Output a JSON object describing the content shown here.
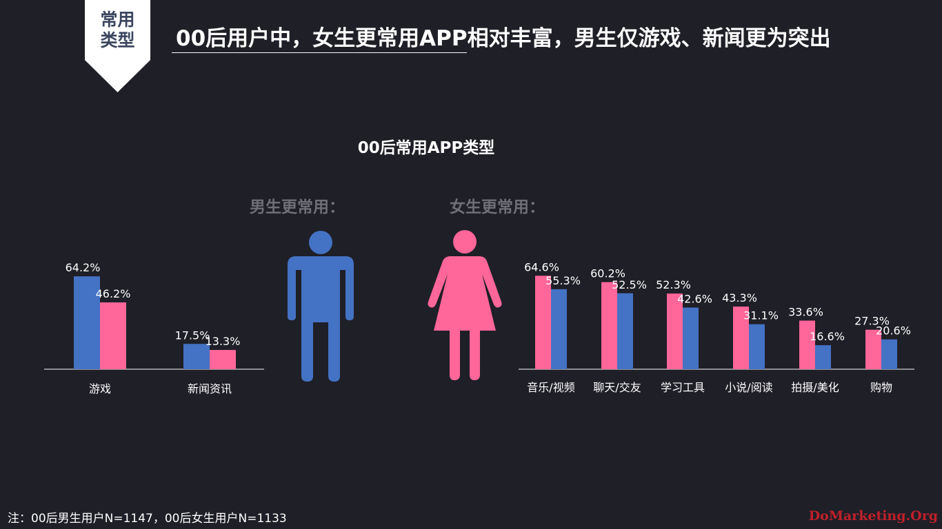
{
  "header": {
    "tag_line1": "常用",
    "tag_line2": "类型",
    "headline": "00后用户中，女生更常用APP相对丰富，男生仅游戏、新闻更为突出"
  },
  "labels": {
    "male_group": "男生更常用：",
    "female_group": "女生更常用："
  },
  "colors": {
    "male": "#4472c4",
    "female": "#ff6699",
    "background": "#1f1f27",
    "axis": "#ffffff",
    "muted_label": "#6f6f78",
    "brand": "#c0202b"
  },
  "chart_data": [
    {
      "type": "bar",
      "title": "00后常用APP类型",
      "categories": [
        "游戏",
        "新闻资讯"
      ],
      "series": [
        {
          "values": [
            64.2,
            17.5
          ],
          "color": "#4472c4"
        },
        {
          "values": [
            46.2,
            13.3
          ],
          "color": "#ff6699"
        }
      ],
      "value_labels": [
        [
          "64.2%",
          "17.5%"
        ],
        [
          "46.2%",
          "13.3%"
        ]
      ],
      "ylim": [
        0,
        100
      ],
      "unit": "%"
    },
    {
      "type": "bar",
      "categories": [
        "音乐/视频",
        "聊天/交友",
        "学习工具",
        "小说/阅读",
        "拍摄/美化",
        "购物"
      ],
      "series": [
        {
          "values": [
            64.6,
            60.2,
            52.3,
            43.3,
            33.6,
            27.3
          ],
          "color": "#ff6699"
        },
        {
          "values": [
            55.3,
            52.5,
            42.6,
            31.1,
            16.6,
            20.6
          ],
          "color": "#4472c4"
        }
      ],
      "value_labels": [
        [
          "64.6%",
          "60.2%",
          "52.3%",
          "43.3%",
          "33.6%",
          "27.3%"
        ],
        [
          "55.3%",
          "52.5%",
          "42.6%",
          "31.1%",
          "16.6%",
          "20.6%"
        ]
      ],
      "ylim": [
        0,
        100
      ],
      "unit": "%"
    }
  ],
  "footer": {
    "note": "注：00后男生用户N=1147，00后女生用户N=1133",
    "brand": "DoMarketing.Org"
  }
}
